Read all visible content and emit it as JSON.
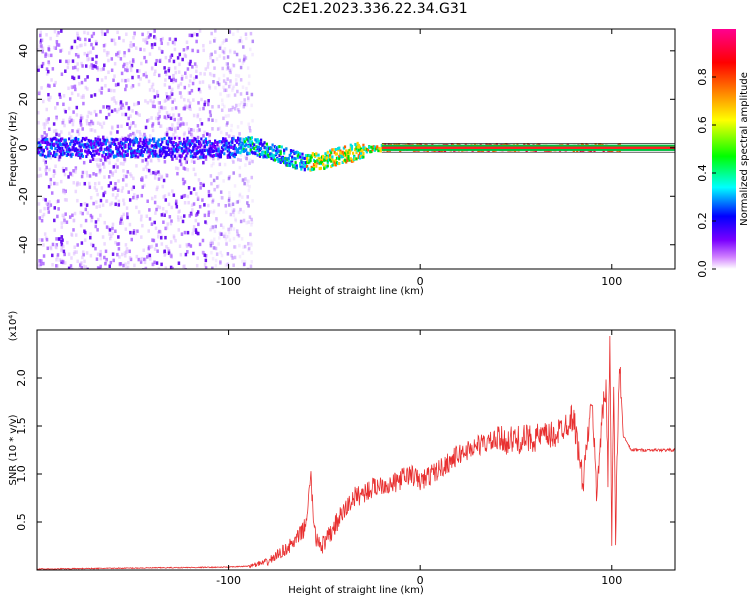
{
  "title": "C2E1.2023.336.22.34.G31",
  "chart_data": [
    {
      "type": "heatmap",
      "xlabel": "Height of straight line (km)",
      "ylabel": "Frequency (Hz)",
      "xlim": [
        -200,
        133
      ],
      "ylim": [
        -50,
        49
      ],
      "xticks": [
        -100,
        0,
        100
      ],
      "yticks": [
        -40,
        -20,
        0,
        20,
        40
      ],
      "colorbar": {
        "label": "Normalized spectral amplitude",
        "range": [
          0.0,
          1.0
        ],
        "ticks": [
          0.0,
          0.2,
          0.4,
          0.6,
          0.8
        ],
        "colors": [
          "#ffffff",
          "#7a00ff",
          "#0000ff",
          "#00ffff",
          "#00ff00",
          "#ffff00",
          "#ff8000",
          "#ff0000",
          "#ff0080"
        ]
      },
      "ridge": {
        "x": [
          -200,
          -150,
          -100,
          -90,
          -80,
          -70,
          -60,
          -50,
          -40,
          -30,
          -20,
          -10,
          0,
          50,
          100,
          133
        ],
        "freq": [
          0,
          0,
          0,
          1,
          -1,
          -4,
          -6,
          -5,
          -3,
          -1,
          0,
          0,
          0,
          0,
          0,
          0
        ]
      }
    },
    {
      "type": "line",
      "xlabel": "Height of straight line (km)",
      "ylabel": "SNR (10 * v/v)",
      "multiplier": "(x10⁴)",
      "xlim": [
        -200,
        133
      ],
      "ylim": [
        0,
        2.5
      ],
      "xticks": [
        -100,
        0,
        100
      ],
      "yticks": [
        0.5,
        1.0,
        1.5,
        2.0
      ],
      "color": "#e83030",
      "series": [
        {
          "x": [
            -200,
            -150,
            -100,
            -90,
            -80,
            -75,
            -70,
            -65,
            -60,
            -57,
            -55,
            -50,
            -45,
            -40,
            -35,
            -30,
            -25,
            -20,
            -15,
            -10,
            -5,
            0,
            10,
            20,
            30,
            40,
            50,
            60,
            70,
            80,
            85,
            88,
            90,
            92,
            95,
            97,
            98,
            99,
            100,
            101,
            102,
            104,
            106,
            110,
            120,
            133
          ],
          "y": [
            0.01,
            0.02,
            0.03,
            0.04,
            0.08,
            0.15,
            0.22,
            0.3,
            0.45,
            0.95,
            0.35,
            0.25,
            0.45,
            0.6,
            0.75,
            0.8,
            0.85,
            0.9,
            0.88,
            0.95,
            1.0,
            0.92,
            1.05,
            1.2,
            1.3,
            1.35,
            1.35,
            1.38,
            1.4,
            1.6,
            0.9,
            1.5,
            1.7,
            0.8,
            1.6,
            1.9,
            1.0,
            2.5,
            0.3,
            1.9,
            0.35,
            2.2,
            1.4,
            1.25,
            1.25,
            1.25
          ]
        }
      ]
    }
  ]
}
